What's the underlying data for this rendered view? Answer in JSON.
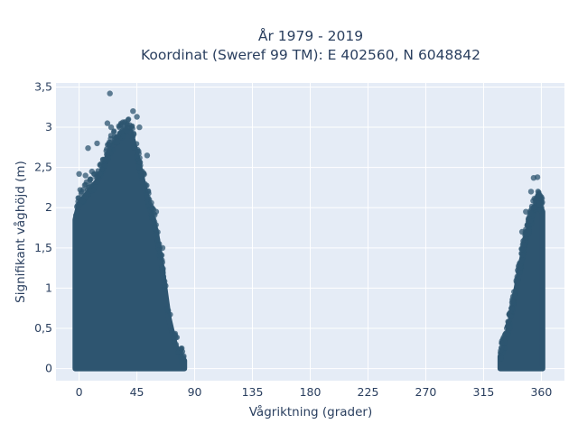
{
  "chart_data": {
    "type": "scatter",
    "title_line1": "År 1979 - 2019",
    "title_line2": "Koordinat (Sweref 99 TM): E 402560, N 6048842",
    "xlabel": "Vågriktning (grader)",
    "ylabel": "Signifikant våghöjd (m)",
    "xlim": [
      -18,
      378
    ],
    "ylim": [
      -0.15,
      3.55
    ],
    "xticks": [
      0,
      45,
      90,
      135,
      180,
      225,
      270,
      315,
      360
    ],
    "xtick_labels": [
      "0",
      "45",
      "90",
      "135",
      "180",
      "225",
      "270",
      "315",
      "360"
    ],
    "yticks": [
      0,
      0.5,
      1,
      1.5,
      2,
      2.5,
      3,
      3.5
    ],
    "ytick_labels": [
      "0",
      "0,5",
      "1",
      "1,5",
      "2",
      "2,5",
      "3",
      "3,5"
    ],
    "grid": true,
    "marker_color": "#2e5570",
    "background_color": "#e5ecf6",
    "clusters": [
      {
        "x_range": [
          -3,
          82
        ],
        "envelope": [
          [
            -3,
            1.85
          ],
          [
            0,
            2.05
          ],
          [
            5,
            2.15
          ],
          [
            10,
            2.25
          ],
          [
            15,
            2.35
          ],
          [
            20,
            2.55
          ],
          [
            25,
            2.75
          ],
          [
            30,
            2.85
          ],
          [
            35,
            2.95
          ],
          [
            40,
            2.95
          ],
          [
            45,
            2.65
          ],
          [
            50,
            2.3
          ],
          [
            55,
            2.0
          ],
          [
            60,
            1.7
          ],
          [
            65,
            1.2
          ],
          [
            70,
            0.62
          ],
          [
            75,
            0.28
          ],
          [
            80,
            0.14
          ],
          [
            82,
            0.1
          ]
        ]
      },
      {
        "x_range": [
          328,
          361
        ],
        "envelope": [
          [
            328,
            0.15
          ],
          [
            332,
            0.32
          ],
          [
            336,
            0.6
          ],
          [
            340,
            0.95
          ],
          [
            344,
            1.3
          ],
          [
            348,
            1.6
          ],
          [
            352,
            1.85
          ],
          [
            355,
            2.02
          ],
          [
            358,
            2.05
          ],
          [
            361,
            1.95
          ]
        ]
      }
    ],
    "outliers": [
      {
        "x": 24,
        "y": 3.42
      },
      {
        "x": 42,
        "y": 3.2
      },
      {
        "x": 45,
        "y": 3.13
      },
      {
        "x": 22,
        "y": 3.05
      },
      {
        "x": 25,
        "y": 3.0
      },
      {
        "x": 37,
        "y": 2.95
      },
      {
        "x": 30,
        "y": 2.82
      },
      {
        "x": 14,
        "y": 2.8
      },
      {
        "x": 47,
        "y": 3.0
      },
      {
        "x": 53,
        "y": 2.65
      },
      {
        "x": 7,
        "y": 2.74
      },
      {
        "x": 20,
        "y": 2.6
      },
      {
        "x": 0,
        "y": 2.42
      },
      {
        "x": 5,
        "y": 2.4
      },
      {
        "x": 10,
        "y": 2.45
      },
      {
        "x": 354,
        "y": 2.37
      },
      {
        "x": 357,
        "y": 2.38
      },
      {
        "x": 352,
        "y": 2.2
      },
      {
        "x": 348,
        "y": 1.95
      },
      {
        "x": 359,
        "y": 2.15
      },
      {
        "x": 345,
        "y": 1.7
      },
      {
        "x": 60,
        "y": 1.95
      },
      {
        "x": 65,
        "y": 1.5
      },
      {
        "x": 2,
        "y": 2.2
      }
    ]
  }
}
